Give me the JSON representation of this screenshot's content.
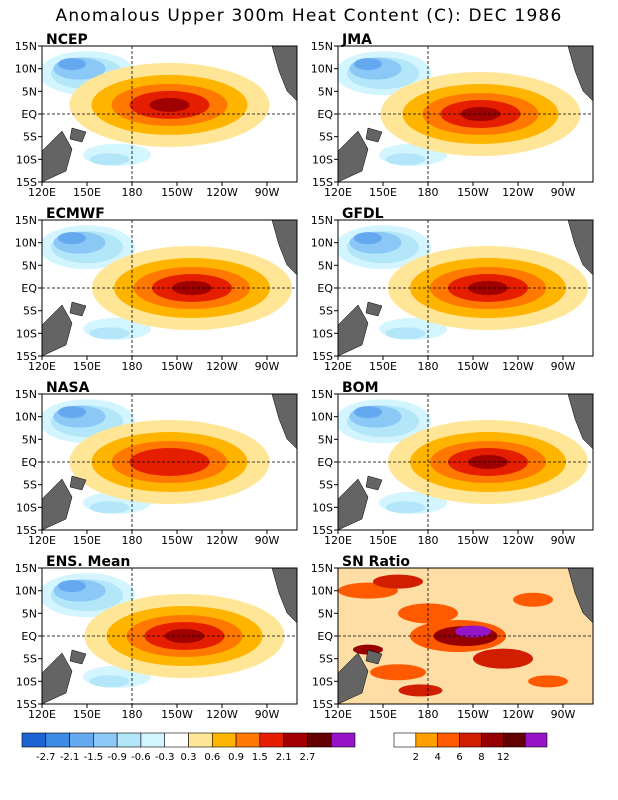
{
  "title": "Anomalous Upper 300m Heat Content (C): DEC 1986",
  "chart_data": [
    {
      "type": "heatmap",
      "title": "NCEP",
      "x_ticks": [
        "120E",
        "150E",
        "180",
        "150W",
        "120W",
        "90W"
      ],
      "y_ticks": [
        "15N",
        "10N",
        "5N",
        "EQ",
        "5S",
        "10S",
        "15S"
      ],
      "xlim": [
        120,
        290
      ],
      "ylim": [
        -15,
        15
      ],
      "max_anomaly_lon": 205,
      "max_anomaly_lat": 2,
      "max_value": 2.1,
      "warm_pool_value": -1.5
    },
    {
      "type": "heatmap",
      "title": "JMA",
      "x_ticks": [
        "120E",
        "150E",
        "180",
        "150W",
        "120W",
        "90W"
      ],
      "y_ticks": [
        "15N",
        "10N",
        "5N",
        "EQ",
        "5S",
        "10S",
        "15S"
      ],
      "xlim": [
        120,
        290
      ],
      "ylim": [
        -15,
        15
      ],
      "max_anomaly_lon": 215,
      "max_anomaly_lat": 0,
      "max_value": 2.1,
      "warm_pool_value": -1.5
    },
    {
      "type": "heatmap",
      "title": "ECMWF",
      "x_ticks": [
        "120E",
        "150E",
        "180",
        "150W",
        "120W",
        "90W"
      ],
      "y_ticks": [
        "15N",
        "10N",
        "5N",
        "EQ",
        "5S",
        "10S",
        "15S"
      ],
      "xlim": [
        120,
        290
      ],
      "ylim": [
        -15,
        15
      ],
      "max_anomaly_lon": 220,
      "max_anomaly_lat": 0,
      "max_value": 2.1,
      "warm_pool_value": -1.5
    },
    {
      "type": "heatmap",
      "title": "GFDL",
      "x_ticks": [
        "120E",
        "150E",
        "180",
        "150W",
        "120W",
        "90W"
      ],
      "y_ticks": [
        "15N",
        "10N",
        "5N",
        "EQ",
        "5S",
        "10S",
        "15S"
      ],
      "xlim": [
        120,
        290
      ],
      "ylim": [
        -15,
        15
      ],
      "max_anomaly_lon": 220,
      "max_anomaly_lat": 0,
      "max_value": 2.1,
      "warm_pool_value": -1.5
    },
    {
      "type": "heatmap",
      "title": "NASA",
      "x_ticks": [
        "120E",
        "150E",
        "180",
        "150W",
        "120W",
        "90W"
      ],
      "y_ticks": [
        "15N",
        "10N",
        "5N",
        "EQ",
        "5S",
        "10S",
        "15S"
      ],
      "xlim": [
        120,
        290
      ],
      "ylim": [
        -15,
        15
      ],
      "max_anomaly_lon": 205,
      "max_anomaly_lat": 0,
      "max_value": 1.5,
      "warm_pool_value": -1.5
    },
    {
      "type": "heatmap",
      "title": "BOM",
      "x_ticks": [
        "120E",
        "150E",
        "180",
        "150W",
        "120W",
        "90W"
      ],
      "y_ticks": [
        "15N",
        "10N",
        "5N",
        "EQ",
        "5S",
        "10S",
        "15S"
      ],
      "xlim": [
        120,
        290
      ],
      "ylim": [
        -15,
        15
      ],
      "max_anomaly_lon": 220,
      "max_anomaly_lat": 0,
      "max_value": 2.1,
      "warm_pool_value": -1.5
    },
    {
      "type": "heatmap",
      "title": "ENS. Mean",
      "x_ticks": [
        "120E",
        "150E",
        "180",
        "150W",
        "120W",
        "90W"
      ],
      "y_ticks": [
        "15N",
        "10N",
        "5N",
        "EQ",
        "5S",
        "10S",
        "15S"
      ],
      "xlim": [
        120,
        290
      ],
      "ylim": [
        -15,
        15
      ],
      "max_anomaly_lon": 215,
      "max_anomaly_lat": 0,
      "max_value": 2.1,
      "warm_pool_value": -1.5
    },
    {
      "type": "heatmap",
      "title": "SN Ratio",
      "x_ticks": [
        "120E",
        "150E",
        "180",
        "150W",
        "120W",
        "90W"
      ],
      "y_ticks": [
        "15N",
        "10N",
        "5N",
        "EQ",
        "5S",
        "10S",
        "15S"
      ],
      "xlim": [
        120,
        290
      ],
      "ylim": [
        -15,
        15
      ],
      "max_anomaly_lon": 210,
      "max_anomaly_lat": 0,
      "max_value": 12,
      "warm_pool_value": 2
    }
  ],
  "colorbar_anomaly": {
    "labels": [
      "-2.7",
      "-2.1",
      "-1.5",
      "-0.9",
      "-0.6",
      "-0.3",
      "0.3",
      "0.6",
      "0.9",
      "1.5",
      "2.1",
      "2.7"
    ],
    "colors": [
      "#1c64d2",
      "#3c8ce6",
      "#64a8f0",
      "#8cc8f5",
      "#b4e6fa",
      "#d2f5ff",
      "#ffffff",
      "#ffe696",
      "#ffb400",
      "#ff7800",
      "#e61e00",
      "#a00000",
      "#640000",
      "#9614c8"
    ]
  },
  "colorbar_sn": {
    "labels": [
      "2",
      "4",
      "6",
      "8",
      "12"
    ],
    "colors": [
      "#ffffff",
      "#ffa000",
      "#ff5a00",
      "#d21e00",
      "#960000",
      "#640000",
      "#9614c8"
    ]
  }
}
